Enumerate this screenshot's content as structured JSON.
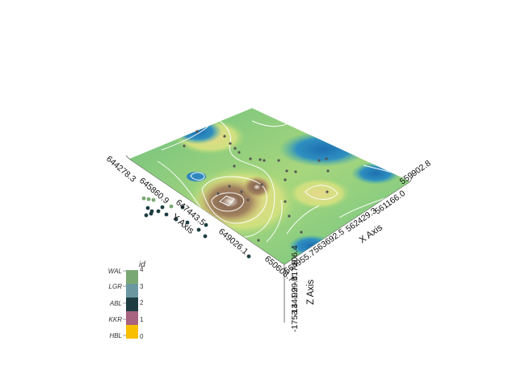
{
  "scene": {
    "x_axis": {
      "title": "X Axis",
      "ticks": [
        "559902.8",
        "561166.0",
        "562429.3",
        "563692.5",
        "564955.7"
      ]
    },
    "y_axis": {
      "title": "Y Axis",
      "ticks": [
        "644278.3",
        "645860.9",
        "647443.5",
        "649026.1",
        "650608.7"
      ]
    },
    "z_axis": {
      "title": "Z Axis",
      "ticks": [
        "-1753.4",
        "-1341.9",
        "-929.4",
        "-517.9",
        "-106.4"
      ]
    }
  },
  "legend": {
    "title": "id",
    "entries": [
      {
        "label": "WAL",
        "value": "4",
        "color": "#7aa874"
      },
      {
        "label": "LGR",
        "value": "3",
        "color": "#6b98a0"
      },
      {
        "label": "ABL",
        "value": "2",
        "color": "#1e3d42"
      },
      {
        "label": "KKR",
        "value": "1",
        "color": "#a7637f"
      },
      {
        "label": "HBL",
        "value": "0",
        "color": "#f7bf00"
      }
    ]
  },
  "colors": {
    "surface_low": "#1d78b5",
    "surface_mid": "#4fbf76",
    "surface_high": "#d9cf7c",
    "surface_peak": "#8a6a53",
    "contour": "#ffffff"
  }
}
